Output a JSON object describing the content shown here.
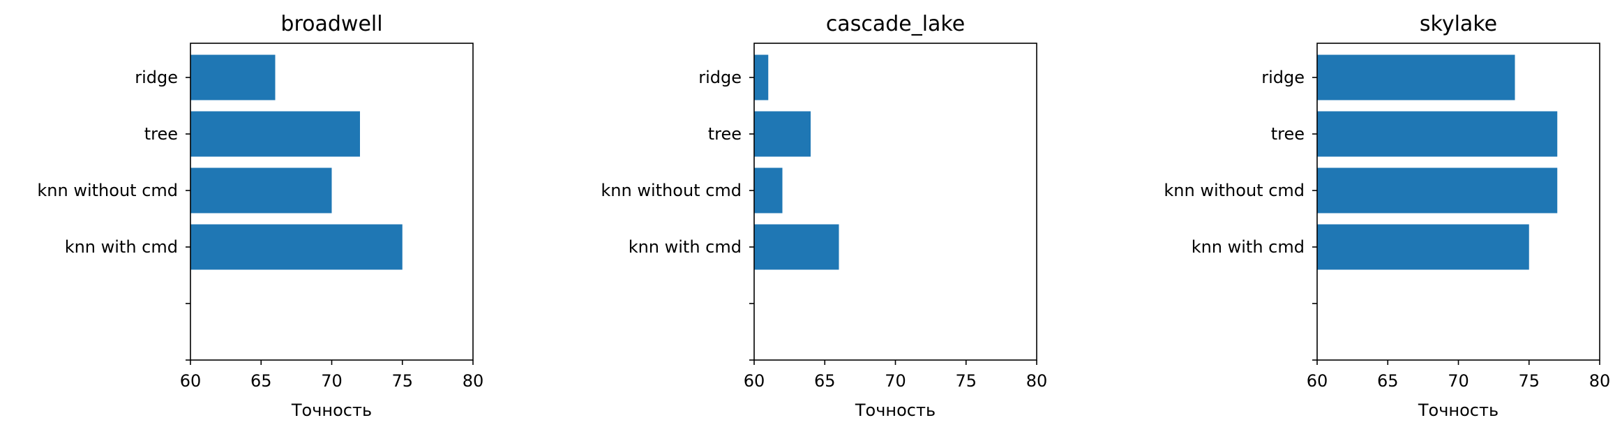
{
  "chart_data": [
    {
      "type": "bar",
      "orientation": "horizontal",
      "title": "broadwell",
      "xlabel": "Точность",
      "ylabel": "",
      "xlim": [
        60,
        80
      ],
      "xticks": [
        "60",
        "65",
        "70",
        "75",
        "80"
      ],
      "categories": [
        "knn with cmd",
        "knn without cmd",
        "tree",
        "ridge"
      ],
      "values": [
        75,
        70,
        72,
        66
      ],
      "color": "#1f77b4"
    },
    {
      "type": "bar",
      "orientation": "horizontal",
      "title": "cascade_lake",
      "xlabel": "Точность",
      "ylabel": "",
      "xlim": [
        60,
        80
      ],
      "xticks": [
        "60",
        "65",
        "70",
        "75",
        "80"
      ],
      "categories": [
        "knn with cmd",
        "knn without cmd",
        "tree",
        "ridge"
      ],
      "values": [
        66,
        62,
        64,
        61
      ],
      "color": "#1f77b4"
    },
    {
      "type": "bar",
      "orientation": "horizontal",
      "title": "skylake",
      "xlabel": "Точность",
      "ylabel": "",
      "xlim": [
        60,
        80
      ],
      "xticks": [
        "60",
        "65",
        "70",
        "75",
        "80"
      ],
      "categories": [
        "knn with cmd",
        "knn without cmd",
        "tree",
        "ridge"
      ],
      "values": [
        75,
        77,
        77,
        74
      ],
      "color": "#1f77b4"
    }
  ]
}
